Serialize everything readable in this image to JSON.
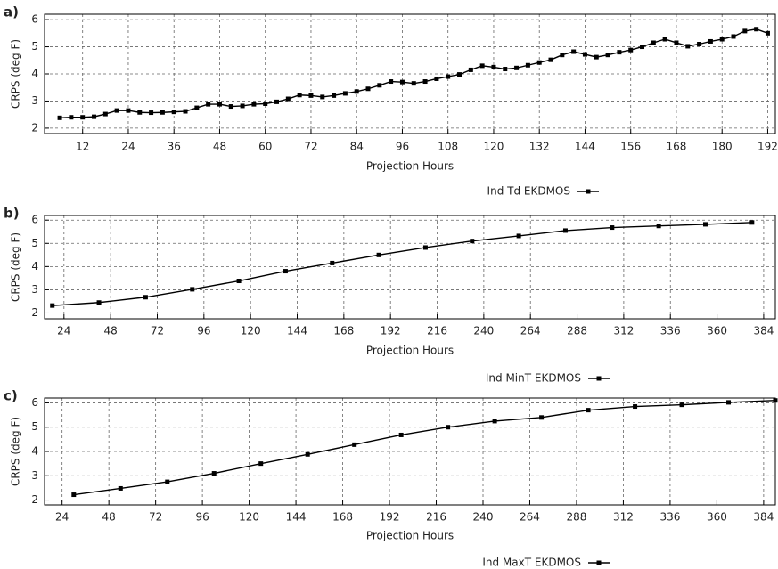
{
  "chart_data": [
    {
      "type": "line",
      "label": "a)",
      "xlabel": "Projection Hours",
      "ylabel": "CRPS (deg F)",
      "grid": true,
      "legend": "bottom",
      "x": [
        6,
        9,
        12,
        15,
        18,
        21,
        24,
        27,
        30,
        33,
        36,
        39,
        42,
        45,
        48,
        51,
        54,
        57,
        60,
        63,
        66,
        69,
        72,
        75,
        78,
        81,
        84,
        87,
        90,
        93,
        96,
        99,
        102,
        105,
        108,
        111,
        114,
        117,
        120,
        123,
        126,
        129,
        132,
        135,
        138,
        141,
        144,
        147,
        150,
        153,
        156,
        159,
        162,
        165,
        168,
        171,
        174,
        177,
        180,
        183,
        186,
        189,
        192
      ],
      "series": [
        {
          "name": "Ind Td EKDMOS",
          "color": "#000000",
          "values": [
            2.38,
            2.4,
            2.4,
            2.42,
            2.52,
            2.65,
            2.65,
            2.58,
            2.57,
            2.58,
            2.6,
            2.62,
            2.75,
            2.88,
            2.88,
            2.8,
            2.82,
            2.88,
            2.9,
            2.97,
            3.08,
            3.22,
            3.2,
            3.15,
            3.2,
            3.28,
            3.35,
            3.45,
            3.58,
            3.72,
            3.7,
            3.65,
            3.72,
            3.82,
            3.9,
            3.98,
            4.15,
            4.3,
            4.25,
            4.18,
            4.22,
            4.32,
            4.42,
            4.52,
            4.7,
            4.82,
            4.72,
            4.62,
            4.7,
            4.8,
            4.88,
            5.0,
            5.15,
            5.28,
            5.15,
            5.02,
            5.1,
            5.2,
            5.28,
            5.38,
            5.58,
            5.65,
            5.5
          ]
        }
      ],
      "xlim": [
        2,
        194
      ],
      "xticks": [
        12,
        24,
        36,
        48,
        60,
        72,
        84,
        96,
        108,
        120,
        132,
        144,
        156,
        168,
        180,
        192
      ],
      "ylim": [
        1.8,
        6.2
      ],
      "yticks": [
        2,
        3,
        4,
        5,
        6
      ]
    },
    {
      "type": "line",
      "label": "b)",
      "xlabel": "Projection Hours",
      "ylabel": "CRPS (deg F)",
      "grid": true,
      "legend": "bottom",
      "x": [
        18,
        42,
        66,
        90,
        114,
        138,
        162,
        186,
        210,
        234,
        258,
        282,
        306,
        330,
        354,
        378
      ],
      "series": [
        {
          "name": "Ind MinT EKDMOS",
          "color": "#000000",
          "values": [
            2.32,
            2.45,
            2.68,
            3.02,
            3.38,
            3.8,
            4.15,
            4.5,
            4.82,
            5.1,
            5.32,
            5.55,
            5.68,
            5.75,
            5.82,
            5.9
          ]
        }
      ],
      "xlim": [
        14,
        390
      ],
      "xticks": [
        24,
        48,
        72,
        96,
        120,
        144,
        168,
        192,
        216,
        240,
        264,
        288,
        312,
        336,
        360,
        384
      ],
      "ylim": [
        1.75,
        6.2
      ],
      "yticks": [
        2,
        3,
        4,
        5,
        6
      ]
    },
    {
      "type": "line",
      "label": "c)",
      "xlabel": "Projection Hours",
      "ylabel": "CRPS (deg F)",
      "grid": true,
      "legend": "bottom",
      "x": [
        30,
        54,
        78,
        102,
        126,
        150,
        174,
        198,
        222,
        246,
        270,
        294,
        318,
        342,
        366,
        390
      ],
      "series": [
        {
          "name": "Ind MaxT EKDMOS",
          "color": "#000000",
          "values": [
            2.22,
            2.48,
            2.75,
            3.1,
            3.5,
            3.88,
            4.28,
            4.68,
            5.0,
            5.25,
            5.4,
            5.7,
            5.85,
            5.92,
            6.02,
            6.1
          ]
        }
      ],
      "xlim": [
        15,
        390
      ],
      "xticks": [
        24,
        48,
        72,
        96,
        120,
        144,
        168,
        192,
        216,
        240,
        264,
        288,
        312,
        336,
        360,
        384
      ],
      "ylim": [
        1.8,
        6.2
      ],
      "yticks": [
        2,
        3,
        4,
        5,
        6
      ]
    }
  ]
}
